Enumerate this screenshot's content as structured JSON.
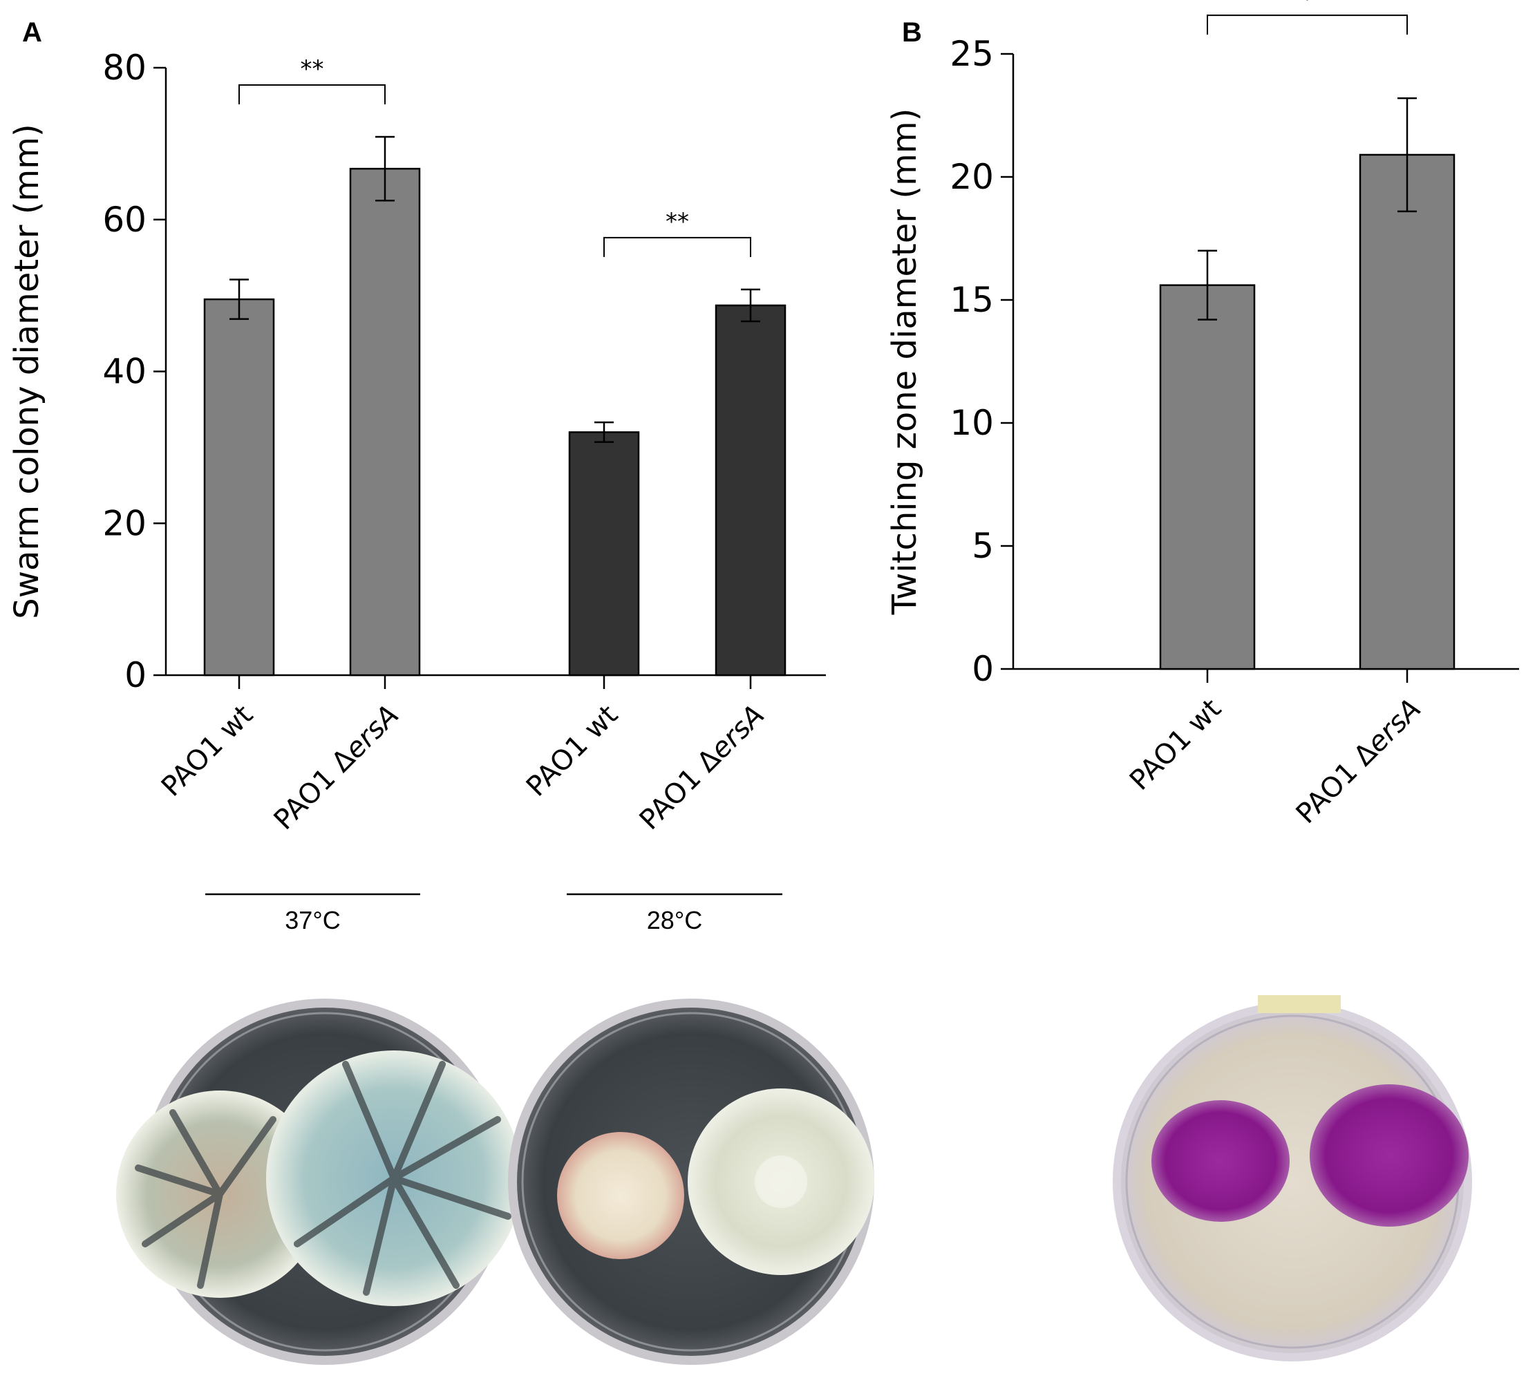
{
  "panels": {
    "a": {
      "letter": "A"
    },
    "b": {
      "letter": "B"
    }
  },
  "chart_data": [
    {
      "id": "A",
      "type": "bar",
      "ylabel": "Swarm colony diameter (mm)",
      "xlabel": "",
      "ylim": [
        0,
        80
      ],
      "yticks": [
        0,
        20,
        40,
        60,
        80
      ],
      "categories": [
        "PAO1 wt",
        "PAO1 ΔersA",
        "PAO1 wt",
        "PAO1 ΔersA"
      ],
      "groups": [
        "37°C",
        "37°C",
        "28°C",
        "28°C"
      ],
      "values": [
        49.5,
        66.7,
        32.0,
        48.7
      ],
      "errors": [
        2.6,
        4.2,
        1.3,
        2.1
      ],
      "colors": [
        "#808080",
        "#808080",
        "#333333",
        "#333333"
      ],
      "group_labels": [
        "37°C",
        "28°C"
      ],
      "significance": [
        {
          "from": 0,
          "to": 1,
          "label": "**"
        },
        {
          "from": 2,
          "to": 3,
          "label": "**"
        }
      ],
      "grid": false
    },
    {
      "id": "B",
      "type": "bar",
      "ylabel": "Twitching zone diameter (mm)",
      "xlabel": "",
      "ylim": [
        0,
        25
      ],
      "yticks": [
        0,
        5,
        10,
        15,
        20,
        25
      ],
      "categories": [
        "PAO1 wt",
        "PAO1 ΔersA"
      ],
      "values": [
        15.6,
        20.9
      ],
      "errors": [
        1.4,
        2.3
      ],
      "colors": [
        "#808080",
        "#808080"
      ],
      "significance": [
        {
          "from": 0,
          "to": 1,
          "label": "*"
        }
      ],
      "grid": false
    }
  ],
  "colors": {
    "bar_light": "#808080",
    "bar_dark": "#333333",
    "axis": "#000000",
    "agar_dark": "#3f4448",
    "agar_light": "#d8cfc0",
    "twitch_stain": "#8a1e8c"
  },
  "photos": [
    {
      "name": "swarm-plate-37c",
      "description_icon": "petri-dish-icon"
    },
    {
      "name": "swarm-plate-28c",
      "description_icon": "petri-dish-icon"
    },
    {
      "name": "twitching-plate",
      "description_icon": "petri-dish-icon"
    }
  ]
}
